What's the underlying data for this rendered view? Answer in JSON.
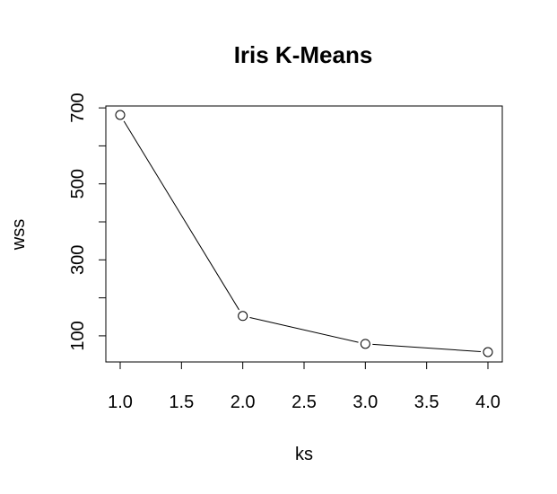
{
  "chart_data": {
    "type": "line",
    "title": "Iris K-Means",
    "xlabel": "ks",
    "ylabel": "wss",
    "x": [
      1,
      2,
      3,
      4
    ],
    "series": [
      {
        "values": [
          681.37,
          152.35,
          78.85,
          57.23
        ]
      }
    ],
    "xticks": [
      "1.0",
      "1.5",
      "2.0",
      "2.5",
      "3.0",
      "3.5",
      "4.0"
    ],
    "yticks": [
      "100",
      "300",
      "500",
      "700"
    ],
    "xlim": [
      1.0,
      4.0
    ],
    "ylim": [
      57.23,
      681.37
    ],
    "grid": false,
    "legend": false,
    "marker": "open-circle",
    "color": "#000000"
  }
}
